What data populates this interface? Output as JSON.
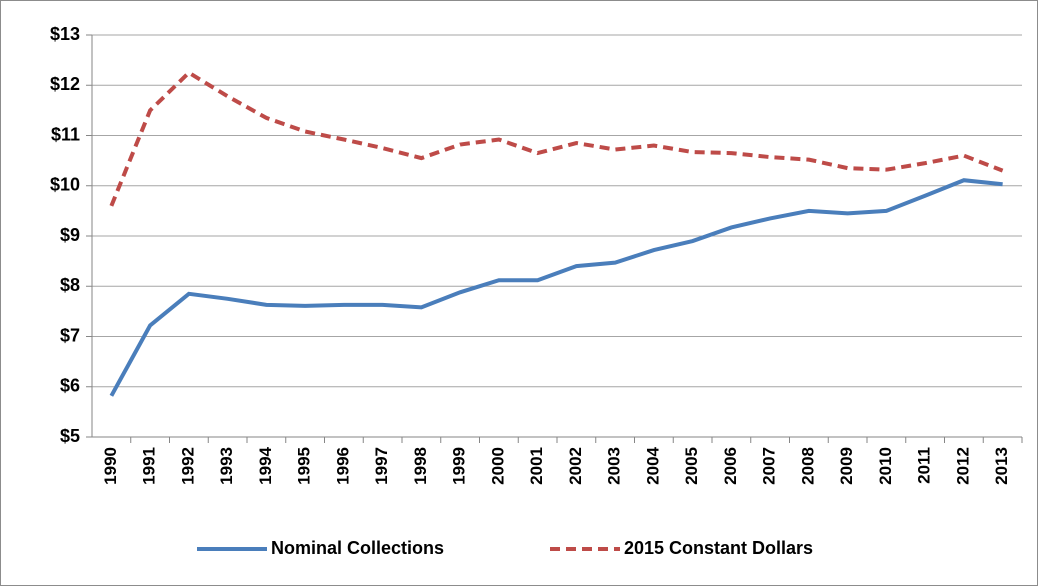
{
  "chart_data": {
    "type": "line",
    "categories": [
      "1990",
      "1991",
      "1992",
      "1993",
      "1994",
      "1995",
      "1996",
      "1997",
      "1998",
      "1999",
      "2000",
      "2001",
      "2002",
      "2003",
      "2004",
      "2005",
      "2006",
      "2007",
      "2008",
      "2009",
      "2010",
      "2011",
      "2012",
      "2013"
    ],
    "series": [
      {
        "name": "Nominal Collections",
        "color": "#4a7ebb",
        "dashed": false,
        "values": [
          5.82,
          7.22,
          7.85,
          7.75,
          7.63,
          7.61,
          7.63,
          7.63,
          7.58,
          7.88,
          8.12,
          8.12,
          8.4,
          8.47,
          8.72,
          8.9,
          9.17,
          9.35,
          9.5,
          9.45,
          9.5,
          9.8,
          10.11,
          10.03
        ]
      },
      {
        "name": "2015 Constant Dollars",
        "color": "#be4b48",
        "dashed": true,
        "values": [
          9.6,
          11.5,
          12.25,
          11.78,
          11.35,
          11.08,
          10.92,
          10.75,
          10.55,
          10.82,
          10.92,
          10.65,
          10.85,
          10.72,
          10.8,
          10.67,
          10.65,
          10.57,
          10.52,
          10.35,
          10.32,
          10.45,
          10.6,
          10.3
        ]
      }
    ],
    "ylim": [
      5,
      13
    ],
    "yticks": [
      {
        "value": 5,
        "label": "$5"
      },
      {
        "value": 6,
        "label": "$6"
      },
      {
        "value": 7,
        "label": "$7"
      },
      {
        "value": 8,
        "label": "$8"
      },
      {
        "value": 9,
        "label": "$9"
      },
      {
        "value": 10,
        "label": "$10"
      },
      {
        "value": 11,
        "label": "$11"
      },
      {
        "value": 12,
        "label": "$12"
      },
      {
        "value": 13,
        "label": "$13"
      }
    ],
    "grid": true,
    "legend": "bottom"
  }
}
